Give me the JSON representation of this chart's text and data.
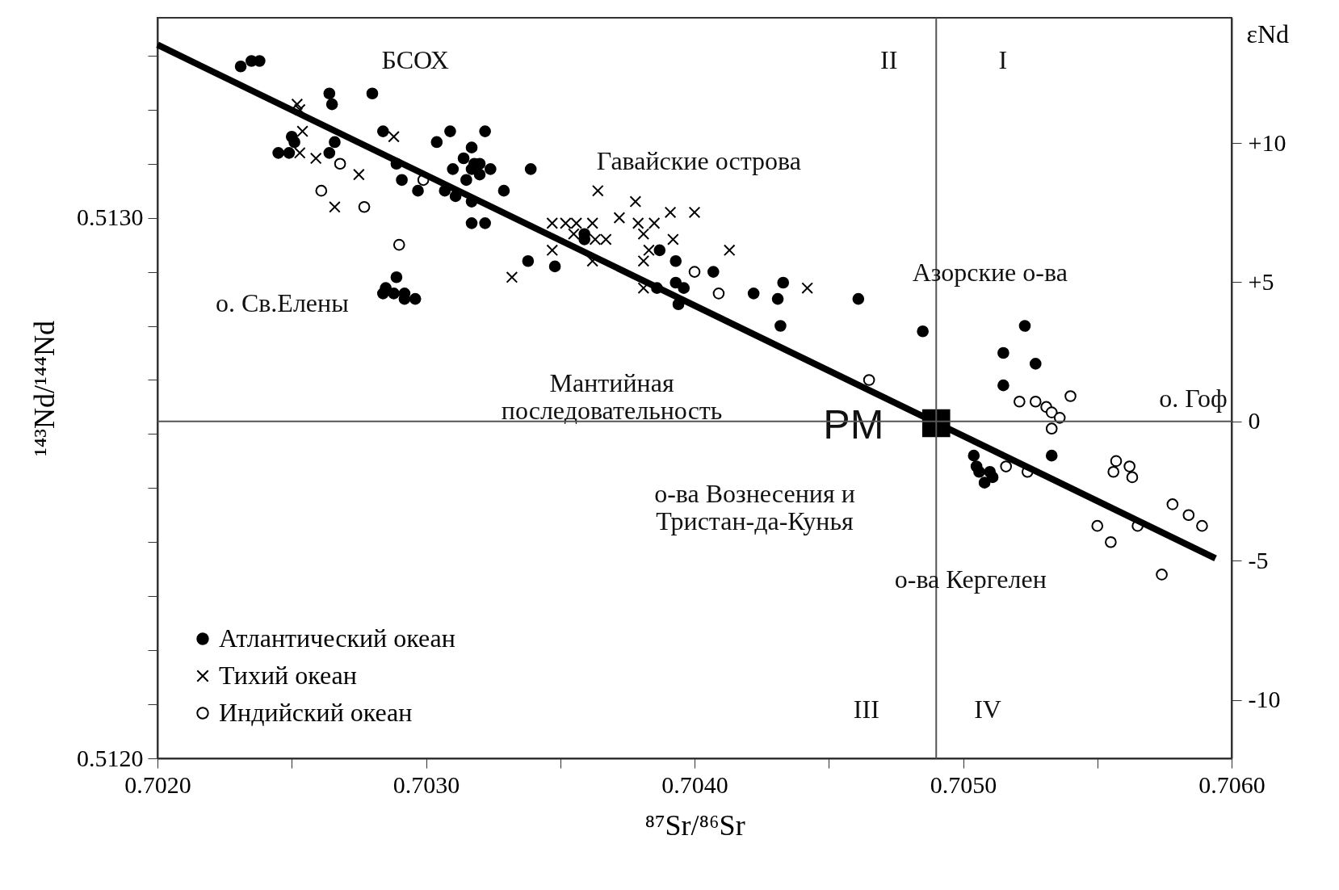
{
  "chart_data": {
    "type": "scatter",
    "xlabel": "⁸⁷Sr/⁸⁶Sr",
    "ylabel": "¹⁴³Nd/¹⁴⁴Nd",
    "y2label": "εNd",
    "xlim": [
      0.702,
      0.706
    ],
    "ylim": [
      0.512,
      0.51337
    ],
    "y2lim": [
      -12.1,
      14.5
    ],
    "xticks": [
      {
        "value": 0.702,
        "label": "0.7020"
      },
      {
        "value": 0.7025,
        "label": null
      },
      {
        "value": 0.703,
        "label": "0.7030"
      },
      {
        "value": 0.7035,
        "label": null
      },
      {
        "value": 0.704,
        "label": "0.7040"
      },
      {
        "value": 0.7045,
        "label": null
      },
      {
        "value": 0.705,
        "label": "0.7050"
      },
      {
        "value": 0.7055,
        "label": null
      },
      {
        "value": 0.706,
        "label": "0.7060"
      }
    ],
    "yticks": [
      {
        "value": 0.512,
        "label": "0.5120"
      },
      {
        "value": 0.5121,
        "label": null
      },
      {
        "value": 0.5122,
        "label": null
      },
      {
        "value": 0.5123,
        "label": null
      },
      {
        "value": 0.5124,
        "label": null
      },
      {
        "value": 0.5125,
        "label": null
      },
      {
        "value": 0.5126,
        "label": null
      },
      {
        "value": 0.5127,
        "label": null
      },
      {
        "value": 0.5128,
        "label": null
      },
      {
        "value": 0.5129,
        "label": null
      },
      {
        "value": 0.513,
        "label": "0.5130"
      },
      {
        "value": 0.5131,
        "label": null
      },
      {
        "value": 0.5132,
        "label": null
      },
      {
        "value": 0.5133,
        "label": null
      }
    ],
    "y2ticks": [
      {
        "value": 10,
        "label": "+10"
      },
      {
        "value": 5,
        "label": "+5"
      },
      0,
      -5,
      -10
    ],
    "grid": false,
    "legend": "bottom left",
    "series": [
      {
        "name": "Атлантический океан",
        "type": "scatter",
        "marker": "circle",
        "color": "#000000",
        "x": [
          0.70231,
          0.70235,
          0.70238,
          0.70264,
          0.70265,
          0.7028,
          0.7025,
          0.70251,
          0.70245,
          0.70249,
          0.70266,
          0.70264,
          0.70284,
          0.70304,
          0.70309,
          0.70322,
          0.70317,
          0.70314,
          0.70318,
          0.7032,
          0.70317,
          0.70324,
          0.7031,
          0.7032,
          0.70315,
          0.70289,
          0.70291,
          0.70297,
          0.70307,
          0.70311,
          0.70317,
          0.70317,
          0.70322,
          0.70329,
          0.70339,
          0.70338,
          0.70348,
          0.70359,
          0.70359,
          0.70387,
          0.70393,
          0.70407,
          0.70393,
          0.70396,
          0.70386,
          0.70394,
          0.70422,
          0.70431,
          0.70433,
          0.70432,
          0.70461,
          0.70485,
          0.70523,
          0.70515,
          0.70527,
          0.70515,
          0.70533,
          0.70504,
          0.70505,
          0.70506,
          0.7051,
          0.70508,
          0.70511,
          0.70285,
          0.70289,
          0.70284,
          0.70288,
          0.70292,
          0.70292,
          0.70296
        ],
        "values": [
          0.51328,
          0.51329,
          0.51329,
          0.51323,
          0.51321,
          0.51323,
          0.51315,
          0.51314,
          0.51312,
          0.51312,
          0.51314,
          0.51312,
          0.51316,
          0.51314,
          0.51316,
          0.51316,
          0.51313,
          0.51311,
          0.5131,
          0.5131,
          0.51309,
          0.51309,
          0.51309,
          0.51308,
          0.51307,
          0.5131,
          0.51307,
          0.51305,
          0.51305,
          0.51304,
          0.51303,
          0.51299,
          0.51299,
          0.51305,
          0.51309,
          0.51292,
          0.51291,
          0.51297,
          0.51296,
          0.51294,
          0.51292,
          0.5129,
          0.51288,
          0.51287,
          0.51287,
          0.51284,
          0.51286,
          0.51285,
          0.51288,
          0.5128,
          0.51285,
          0.51279,
          0.5128,
          0.51275,
          0.51273,
          0.51269,
          0.51256,
          0.51256,
          0.51254,
          0.51253,
          0.51253,
          0.51251,
          0.51252,
          0.51287,
          0.51289,
          0.51286,
          0.51286,
          0.51286,
          0.51285,
          0.51285
        ]
      },
      {
        "name": "Тихий океан",
        "type": "scatter",
        "marker": "cross",
        "color": "#000000",
        "x": [
          0.70252,
          0.70253,
          0.70254,
          0.70253,
          0.70259,
          0.70288,
          0.70275,
          0.70266,
          0.70364,
          0.70378,
          0.70372,
          0.70391,
          0.704,
          0.70347,
          0.70352,
          0.70356,
          0.70362,
          0.70355,
          0.70363,
          0.70367,
          0.70379,
          0.70381,
          0.70385,
          0.70392,
          0.70347,
          0.70362,
          0.70383,
          0.70381,
          0.70413,
          0.70332,
          0.70381,
          0.70442
        ],
        "values": [
          0.51321,
          0.5132,
          0.51316,
          0.51312,
          0.51311,
          0.51315,
          0.51308,
          0.51302,
          0.51305,
          0.51303,
          0.513,
          0.51301,
          0.51301,
          0.51299,
          0.51299,
          0.51299,
          0.51299,
          0.51297,
          0.51296,
          0.51296,
          0.51299,
          0.51297,
          0.51299,
          0.51296,
          0.51294,
          0.51292,
          0.51294,
          0.51292,
          0.51294,
          0.51289,
          0.51287,
          0.51287
        ]
      },
      {
        "name": "Индийский океан",
        "type": "scatter",
        "marker": "circle",
        "color": "#000000",
        "x": [
          0.70268,
          0.70299,
          0.70261,
          0.70277,
          0.7029,
          0.704,
          0.70409,
          0.70465,
          0.7054,
          0.70521,
          0.70527,
          0.70531,
          0.70533,
          0.70536,
          0.70533,
          0.70516,
          0.70524,
          0.70557,
          0.70556,
          0.70562,
          0.70563,
          0.70578,
          0.70584,
          0.70589,
          0.7055,
          0.70565,
          0.70555,
          0.70574
        ],
        "values": [
          0.5131,
          0.51307,
          0.51305,
          0.51302,
          0.51295,
          0.5129,
          0.51286,
          0.5127,
          0.51267,
          0.51266,
          0.51266,
          0.51265,
          0.51264,
          0.51263,
          0.51261,
          0.51254,
          0.51253,
          0.51255,
          0.51253,
          0.51254,
          0.51252,
          0.51247,
          0.51245,
          0.51243,
          0.51243,
          0.51243,
          0.5124,
          0.51234
        ]
      },
      {
        "type": "line",
        "color": "#000000",
        "x": [
          0.702,
          0.70594
        ],
        "values": [
          0.51332,
          0.51237
        ]
      },
      {
        "type": "scatter",
        "marker": "square",
        "color": "#000000",
        "x": [
          0.7049
        ],
        "values": [
          0.51262
        ]
      }
    ],
    "ref_lines": [
      {
        "axis": "x",
        "value": 0.7049
      },
      {
        "axis": "y2",
        "value": 0
      }
    ],
    "annotations": [
      "БСОХ",
      "II",
      "I",
      "III",
      "IV",
      "Гавайские острова",
      "Азорские о-ва",
      "о. Св.Елены",
      "Мантийная\nпоследовательность",
      "PM",
      "о. Гоф",
      "о-ва Вознесения и\nТристан-да-Кунья",
      "о-ва Кергелен"
    ]
  }
}
